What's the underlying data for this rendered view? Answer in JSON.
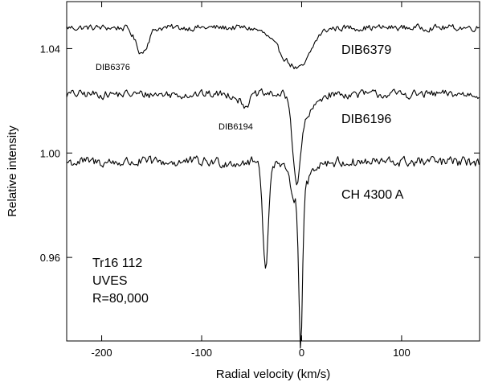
{
  "chart_data": {
    "type": "line",
    "xlabel": "Radial velocity (km/s)",
    "ylabel": "Relative intensity",
    "xlim": [
      -235,
      178
    ],
    "ylim": [
      0.928,
      1.058
    ],
    "x_ticks": [
      -200,
      -100,
      0,
      100
    ],
    "x_tick_labels": [
      "-200",
      "-100",
      "0",
      "100"
    ],
    "y_ticks": [
      0.96,
      1.0,
      1.04
    ],
    "y_tick_labels": [
      "0.96",
      "1.00",
      "1.04"
    ],
    "grid": false,
    "series": [
      {
        "name": "DIB6379",
        "baseline": 1.048,
        "noise": 0.0012,
        "features": [
          {
            "center": -160,
            "depth": 0.0095,
            "width": 6
          },
          {
            "center": -10,
            "depth": 0.0125,
            "width": 15
          },
          {
            "center": 2,
            "depth": 0.0055,
            "width": 8
          }
        ]
      },
      {
        "name": "DIB6196",
        "baseline": 1.0225,
        "noise": 0.0016,
        "features": [
          {
            "center": -57,
            "depth": 0.004,
            "width": 5
          },
          {
            "center": -5,
            "depth": 0.03,
            "width": 4
          },
          {
            "center": 5,
            "depth": 0.008,
            "width": 8
          }
        ]
      },
      {
        "name": "CH 4300 A",
        "baseline": 0.9965,
        "noise": 0.002,
        "features": [
          {
            "center": -36,
            "depth": 0.042,
            "width": 2.6
          },
          {
            "center": -1,
            "depth": 0.058,
            "width": 1.7
          },
          {
            "center": -3,
            "depth": 0.015,
            "width": 8
          }
        ]
      }
    ],
    "annotations": [
      "DIB6376",
      "DIB6194"
    ],
    "notes": [
      "Tr16 112",
      "UVES",
      "R=80,000"
    ]
  }
}
